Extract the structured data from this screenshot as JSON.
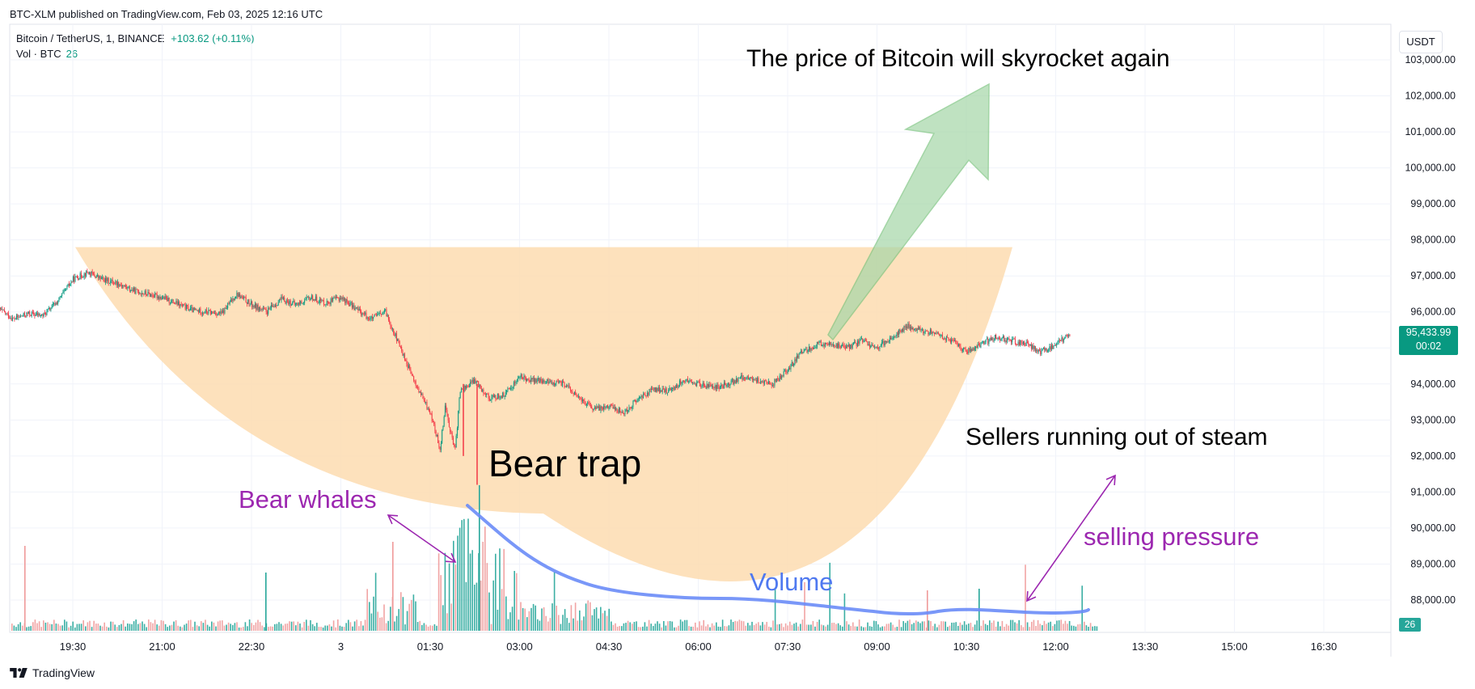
{
  "header": {
    "published": "BTC-XLM published on TradingView.com, Feb 03, 2025 12:16 UTC",
    "symbol": "Bitcoin / TetherUS, 1, BINANCE",
    "change": "+103.62 (+0.11%)",
    "volume_label": "Vol · BTC",
    "volume_value": "26"
  },
  "currency": "USDT",
  "last_price": {
    "price": "95,433.99",
    "countdown": "00:02"
  },
  "last_volume": "26",
  "footer": {
    "brand": "TradingView"
  },
  "colors": {
    "up": "#089981",
    "down": "#f23645",
    "bowl": "#fddcb0",
    "arrow": "#a5d6a7",
    "volume_line": "#6a8cf7",
    "purple": "#9c27b0"
  },
  "annotations": {
    "skyrocket": "The price of Bitcoin will skyrocket again",
    "bear_trap": "Bear trap",
    "bear_whales": "Bear whales",
    "volume": "Volume",
    "sellers": "Sellers running out of steam",
    "selling_pressure": "selling pressure"
  },
  "chart_data": {
    "type": "candlestick",
    "y_axis": {
      "range": [
        87000,
        103600
      ],
      "ticks": [
        "103,000.00",
        "102,000.00",
        "101,000.00",
        "100,000.00",
        "99,000.00",
        "98,000.00",
        "97,000.00",
        "96,000.00",
        "95,000.00",
        "94,000.00",
        "93,000.00",
        "92,000.00",
        "91,000.00",
        "90,000.00",
        "89,000.00",
        "88,000.00"
      ]
    },
    "x_axis": {
      "ticks": [
        "19:30",
        "21:00",
        "22:30",
        "3",
        "01:30",
        "03:00",
        "04:30",
        "06:00",
        "07:30",
        "09:00",
        "10:30",
        "12:00",
        "13:30",
        "15:00",
        "16:30"
      ]
    },
    "price_path": [
      [
        "18:15",
        96100
      ],
      [
        "18:30",
        95800
      ],
      [
        "18:45",
        95950
      ],
      [
        "19:00",
        95900
      ],
      [
        "19:15",
        96300
      ],
      [
        "19:30",
        96900
      ],
      [
        "19:45",
        97100
      ],
      [
        "20:00",
        96900
      ],
      [
        "20:15",
        96800
      ],
      [
        "20:30",
        96600
      ],
      [
        "21:00",
        96400
      ],
      [
        "21:30",
        96050
      ],
      [
        "22:00",
        95950
      ],
      [
        "22:15",
        96500
      ],
      [
        "22:30",
        96200
      ],
      [
        "22:45",
        96000
      ],
      [
        "23:00",
        96350
      ],
      [
        "23:15",
        96200
      ],
      [
        "23:30",
        96400
      ],
      [
        "23:45",
        96250
      ],
      [
        "00:00",
        96400
      ],
      [
        "00:15",
        96100
      ],
      [
        "00:30",
        95800
      ],
      [
        "00:45",
        96000
      ],
      [
        "01:00",
        95000
      ],
      [
        "01:15",
        94000
      ],
      [
        "01:30",
        93200
      ],
      [
        "01:40",
        92200
      ],
      [
        "01:45",
        93400
      ],
      [
        "01:55",
        92100
      ],
      [
        "02:00",
        93800
      ],
      [
        "02:15",
        94100
      ],
      [
        "02:30",
        93600
      ],
      [
        "02:45",
        93700
      ],
      [
        "03:00",
        94200
      ],
      [
        "03:15",
        94100
      ],
      [
        "03:30",
        94050
      ],
      [
        "03:45",
        94000
      ],
      [
        "04:00",
        93600
      ],
      [
        "04:15",
        93300
      ],
      [
        "04:30",
        93400
      ],
      [
        "04:45",
        93200
      ],
      [
        "05:00",
        93600
      ],
      [
        "05:15",
        93850
      ],
      [
        "05:30",
        93800
      ],
      [
        "05:45",
        94100
      ],
      [
        "06:00",
        94000
      ],
      [
        "06:15",
        93900
      ],
      [
        "06:30",
        94000
      ],
      [
        "06:45",
        94200
      ],
      [
        "07:00",
        94100
      ],
      [
        "07:15",
        94000
      ],
      [
        "07:30",
        94400
      ],
      [
        "07:45",
        94900
      ],
      [
        "08:00",
        95100
      ],
      [
        "08:15",
        95100
      ],
      [
        "08:30",
        95000
      ],
      [
        "08:45",
        95200
      ],
      [
        "09:00",
        95000
      ],
      [
        "09:15",
        95300
      ],
      [
        "09:30",
        95600
      ],
      [
        "09:45",
        95500
      ],
      [
        "10:00",
        95400
      ],
      [
        "10:15",
        95200
      ],
      [
        "10:30",
        94900
      ],
      [
        "10:45",
        95100
      ],
      [
        "11:00",
        95300
      ],
      [
        "11:15",
        95200
      ],
      [
        "11:30",
        95100
      ],
      [
        "11:45",
        94900
      ],
      [
        "12:00",
        95100
      ],
      [
        "12:15",
        95400
      ]
    ],
    "volume_curve": "smooth declining volume from spike near 01:45 to a flat low level after 07:30",
    "last_price": 95433.99,
    "last_volume": 26
  }
}
